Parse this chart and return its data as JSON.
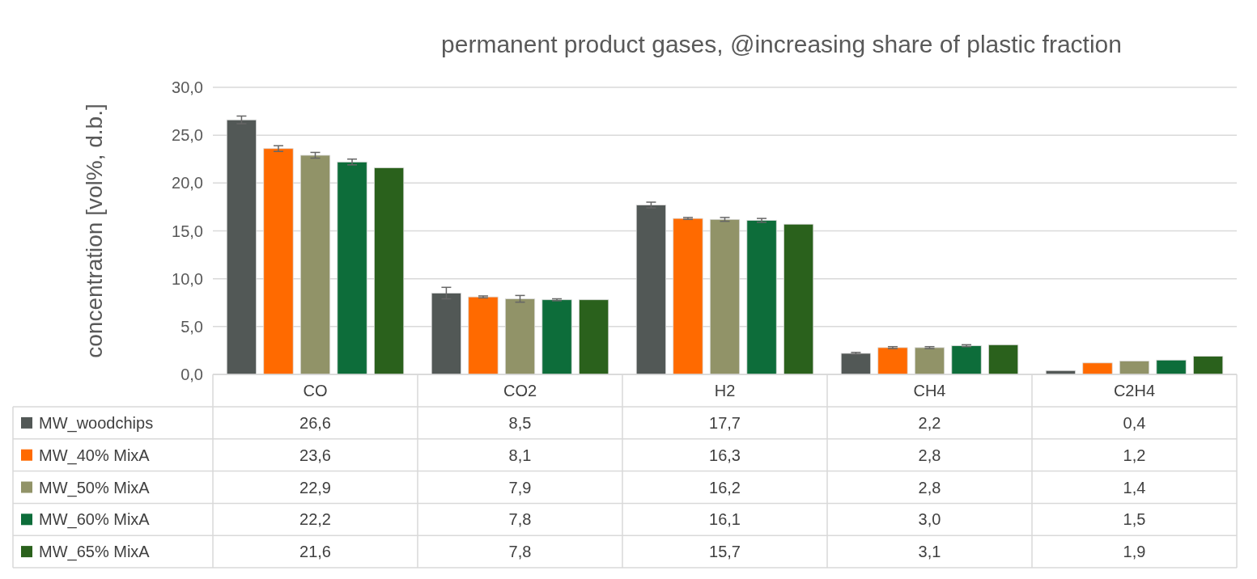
{
  "chart_data": {
    "type": "bar",
    "title": "permanent product gases, @increasing share of plastic fraction",
    "ylabel": "concentration [vol%, d.b.]",
    "categories": [
      "CO",
      "CO2",
      "H2",
      "CH4",
      "C2H4"
    ],
    "series": [
      {
        "name": "MW_woodchips",
        "color": "#525856",
        "values": [
          26.6,
          8.5,
          17.7,
          2.2,
          0.4
        ],
        "value_labels": [
          "26,6",
          "8,5",
          "17,7",
          "2,2",
          "0,4"
        ],
        "errors": [
          0.4,
          0.6,
          0.3,
          0.1,
          null
        ]
      },
      {
        "name": "MW_40% MixA",
        "color": "#ff6a00",
        "values": [
          23.6,
          8.1,
          16.3,
          2.8,
          1.2
        ],
        "value_labels": [
          "23,6",
          "8,1",
          "16,3",
          "2,8",
          "1,2"
        ],
        "errors": [
          0.3,
          0.1,
          0.1,
          0.1,
          null
        ]
      },
      {
        "name": "MW_50% MixA",
        "color": "#919368",
        "values": [
          22.9,
          7.9,
          16.2,
          2.8,
          1.4
        ],
        "value_labels": [
          "22,9",
          "7,9",
          "16,2",
          "2,8",
          "1,4"
        ],
        "errors": [
          0.3,
          0.35,
          0.2,
          0.1,
          null
        ]
      },
      {
        "name": "MW_60% MixA",
        "color": "#0d6d3a",
        "values": [
          22.2,
          7.8,
          16.1,
          3.0,
          1.5
        ],
        "value_labels": [
          "22,2",
          "7,8",
          "16,1",
          "3,0",
          "1,5"
        ],
        "errors": [
          0.3,
          0.1,
          0.2,
          0.1,
          null
        ]
      },
      {
        "name": "MW_65% MixA",
        "color": "#2a611c",
        "values": [
          21.6,
          7.8,
          15.7,
          3.1,
          1.9
        ],
        "value_labels": [
          "21,6",
          "7,8",
          "15,7",
          "3,1",
          "1,9"
        ]
      }
    ],
    "ylim": [
      0,
      30
    ],
    "yticks": [
      {
        "value": 0,
        "label": "0,0"
      },
      {
        "value": 5,
        "label": "5,0"
      },
      {
        "value": 10,
        "label": "10,0"
      },
      {
        "value": 15,
        "label": "15,0"
      },
      {
        "value": 20,
        "label": "20,0"
      },
      {
        "value": 25,
        "label": "25,0"
      },
      {
        "value": 30,
        "label": "30,0"
      }
    ],
    "grid": "y",
    "legend": "bottom"
  }
}
